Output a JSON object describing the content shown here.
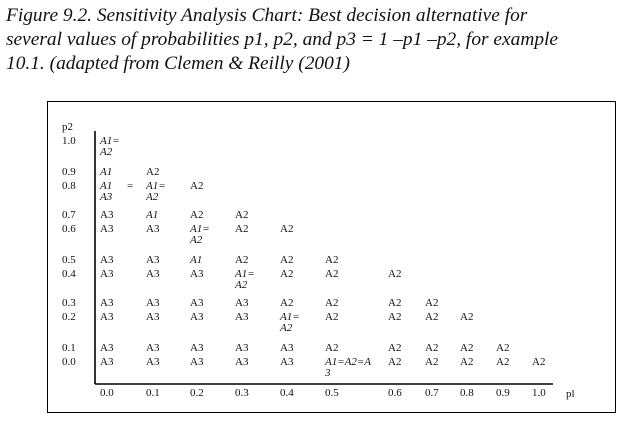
{
  "caption": {
    "lines": [
      "Figure 9.2. Sensitivity Analysis Chart: Best decision alternative for",
      "several values of probabilities p1, p2, and p3 = 1 –p1 –p2, for example",
      "10.1. (adapted from  Clemen & Reilly (2001)"
    ]
  },
  "chart_data": {
    "type": "table",
    "y_axis_label": "p2",
    "x_axis_label": "pl",
    "x_ticks": [
      "0.0",
      "0.1",
      "0.2",
      "0.3",
      "0.4",
      "0.5",
      "0.6",
      "0.7",
      "0.8",
      "0.9",
      "1.0"
    ],
    "y_ticks": [
      "1.0",
      "0.9",
      "0.8",
      "0.7",
      "0.6",
      "0.5",
      "0.4",
      "0.3",
      "0.2",
      "0.1",
      "0.0"
    ],
    "cells": [
      {
        "p1": "0.0",
        "p2": "1.0",
        "text": "A1=",
        "italic": true
      },
      {
        "p1": "0.0",
        "p2": "1.0",
        "text": "A2",
        "italic": true,
        "sub": true
      },
      {
        "p1": "0.0",
        "p2": "0.9",
        "text": "A1",
        "italic": true
      },
      {
        "p1": "0.1",
        "p2": "0.9",
        "text": "A2"
      },
      {
        "p1": "0.0",
        "p2": "0.8",
        "text": "A1",
        "italic": true
      },
      {
        "p1": "0.0",
        "p2": "0.8",
        "text": "=",
        "between": true
      },
      {
        "p1": "0.1",
        "p2": "0.8",
        "text": "A1=",
        "italic": true
      },
      {
        "p1": "0.2",
        "p2": "0.8",
        "text": "A2"
      },
      {
        "p1": "0.0",
        "p2": "0.8",
        "text": "A3",
        "italic": true,
        "sub": true
      },
      {
        "p1": "0.1",
        "p2": "0.8",
        "text": "A2",
        "italic": true,
        "sub": true
      },
      {
        "p1": "0.0",
        "p2": "0.7",
        "text": "A3"
      },
      {
        "p1": "0.1",
        "p2": "0.7",
        "text": "A1",
        "italic": true
      },
      {
        "p1": "0.2",
        "p2": "0.7",
        "text": "A2"
      },
      {
        "p1": "0.3",
        "p2": "0.7",
        "text": "A2"
      },
      {
        "p1": "0.0",
        "p2": "0.6",
        "text": "A3"
      },
      {
        "p1": "0.1",
        "p2": "0.6",
        "text": "A3"
      },
      {
        "p1": "0.2",
        "p2": "0.6",
        "text": "A1=",
        "italic": true
      },
      {
        "p1": "0.3",
        "p2": "0.6",
        "text": "A2"
      },
      {
        "p1": "0.4",
        "p2": "0.6",
        "text": "A2"
      },
      {
        "p1": "0.2",
        "p2": "0.6",
        "text": "A2",
        "italic": true,
        "sub": true
      },
      {
        "p1": "0.0",
        "p2": "0.5",
        "text": "A3"
      },
      {
        "p1": "0.1",
        "p2": "0.5",
        "text": "A3"
      },
      {
        "p1": "0.2",
        "p2": "0.5",
        "text": "A1",
        "italic": true
      },
      {
        "p1": "0.3",
        "p2": "0.5",
        "text": "A2"
      },
      {
        "p1": "0.4",
        "p2": "0.5",
        "text": "A2"
      },
      {
        "p1": "0.5",
        "p2": "0.5",
        "text": "A2"
      },
      {
        "p1": "0.0",
        "p2": "0.4",
        "text": "A3"
      },
      {
        "p1": "0.1",
        "p2": "0.4",
        "text": "A3"
      },
      {
        "p1": "0.2",
        "p2": "0.4",
        "text": "A3"
      },
      {
        "p1": "0.3",
        "p2": "0.4",
        "text": "A1=",
        "italic": true
      },
      {
        "p1": "0.4",
        "p2": "0.4",
        "text": "A2"
      },
      {
        "p1": "0.5",
        "p2": "0.4",
        "text": "A2"
      },
      {
        "p1": "0.6",
        "p2": "0.4",
        "text": "A2"
      },
      {
        "p1": "0.3",
        "p2": "0.4",
        "text": "A2",
        "italic": true,
        "sub": true
      },
      {
        "p1": "0.0",
        "p2": "0.3",
        "text": "A3"
      },
      {
        "p1": "0.1",
        "p2": "0.3",
        "text": "A3"
      },
      {
        "p1": "0.2",
        "p2": "0.3",
        "text": "A3"
      },
      {
        "p1": "0.3",
        "p2": "0.3",
        "text": "A3"
      },
      {
        "p1": "0.4",
        "p2": "0.3",
        "text": "A2"
      },
      {
        "p1": "0.5",
        "p2": "0.3",
        "text": "A2"
      },
      {
        "p1": "0.6",
        "p2": "0.3",
        "text": "A2"
      },
      {
        "p1": "0.7",
        "p2": "0.3",
        "text": "A2"
      },
      {
        "p1": "0.0",
        "p2": "0.2",
        "text": "A3"
      },
      {
        "p1": "0.1",
        "p2": "0.2",
        "text": "A3"
      },
      {
        "p1": "0.2",
        "p2": "0.2",
        "text": "A3"
      },
      {
        "p1": "0.3",
        "p2": "0.2",
        "text": "A3"
      },
      {
        "p1": "0.4",
        "p2": "0.2",
        "text": "A1=",
        "italic": true
      },
      {
        "p1": "0.5",
        "p2": "0.2",
        "text": "A2"
      },
      {
        "p1": "0.6",
        "p2": "0.2",
        "text": "A2"
      },
      {
        "p1": "0.7",
        "p2": "0.2",
        "text": "A2"
      },
      {
        "p1": "0.8",
        "p2": "0.2",
        "text": "A2"
      },
      {
        "p1": "0.4",
        "p2": "0.2",
        "text": "A2",
        "italic": true,
        "sub": true
      },
      {
        "p1": "0.0",
        "p2": "0.1",
        "text": "A3"
      },
      {
        "p1": "0.1",
        "p2": "0.1",
        "text": "A3"
      },
      {
        "p1": "0.2",
        "p2": "0.1",
        "text": "A3"
      },
      {
        "p1": "0.3",
        "p2": "0.1",
        "text": "A3"
      },
      {
        "p1": "0.4",
        "p2": "0.1",
        "text": "A3"
      },
      {
        "p1": "0.5",
        "p2": "0.1",
        "text": "A2"
      },
      {
        "p1": "0.6",
        "p2": "0.1",
        "text": "A2"
      },
      {
        "p1": "0.7",
        "p2": "0.1",
        "text": "A2"
      },
      {
        "p1": "0.8",
        "p2": "0.1",
        "text": "A2"
      },
      {
        "p1": "0.9",
        "p2": "0.1",
        "text": "A2"
      },
      {
        "p1": "0.0",
        "p2": "0.0",
        "text": "A3"
      },
      {
        "p1": "0.1",
        "p2": "0.0",
        "text": "A3"
      },
      {
        "p1": "0.2",
        "p2": "0.0",
        "text": "A3"
      },
      {
        "p1": "0.3",
        "p2": "0.0",
        "text": "A3"
      },
      {
        "p1": "0.4",
        "p2": "0.0",
        "text": "A3"
      },
      {
        "p1": "0.5",
        "p2": "0.0",
        "text": "A1=A2=A",
        "italic": true
      },
      {
        "p1": "0.6",
        "p2": "0.0",
        "text": "A2"
      },
      {
        "p1": "0.7",
        "p2": "0.0",
        "text": "A2"
      },
      {
        "p1": "0.8",
        "p2": "0.0",
        "text": "A2"
      },
      {
        "p1": "0.9",
        "p2": "0.0",
        "text": "A2"
      },
      {
        "p1": "1.0",
        "p2": "0.0",
        "text": "A2"
      },
      {
        "p1": "0.5",
        "p2": "0.0",
        "text": "3",
        "italic": true,
        "sub": true
      }
    ]
  }
}
